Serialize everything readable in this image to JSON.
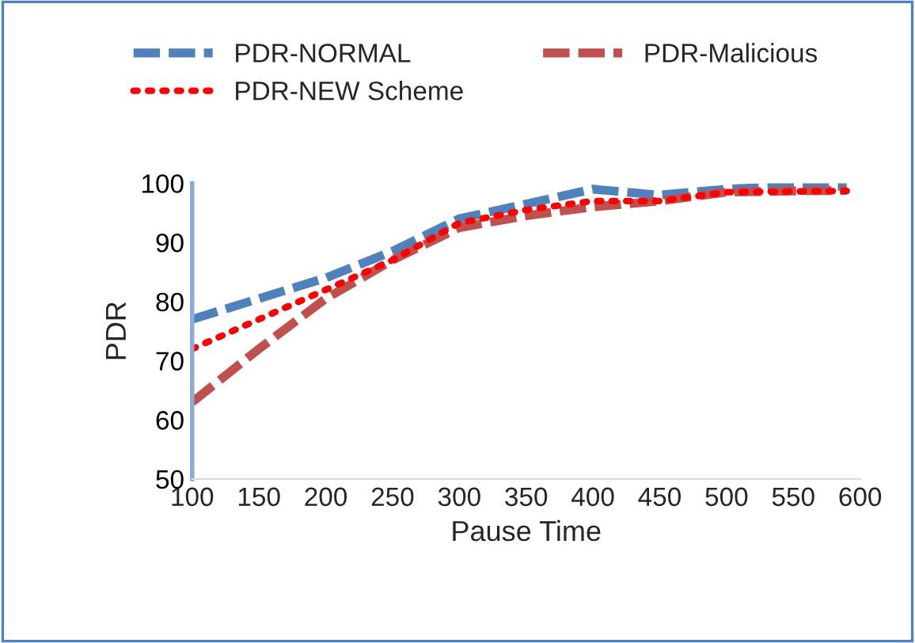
{
  "chart_data": {
    "type": "line",
    "xlabel": "Pause Time",
    "ylabel": "PDR",
    "x": [
      100,
      150,
      200,
      250,
      300,
      350,
      400,
      450,
      500,
      550,
      590
    ],
    "series": [
      {
        "name": "PDR-NORMAL",
        "color": "#4f81bd",
        "line_style": "dashed",
        "values": [
          77,
          80.5,
          84,
          88.5,
          94,
          96.5,
          99,
          98,
          99,
          99.5,
          99.5
        ]
      },
      {
        "name": "PDR-Malicious",
        "color": "#c0504d",
        "line_style": "dashed",
        "values": [
          63,
          72,
          80.5,
          87,
          92.5,
          94.5,
          96,
          97,
          98.5,
          98.7,
          98.8
        ]
      },
      {
        "name": "PDR-NEW Scheme",
        "color": "#ff0000",
        "line_style": "dotted",
        "values": [
          72,
          77,
          82,
          87,
          93.3,
          95.5,
          97,
          97,
          98.5,
          98.6,
          98.7
        ]
      }
    ],
    "xlim": [
      100,
      600
    ],
    "xticks": [
      100,
      150,
      200,
      250,
      300,
      350,
      400,
      450,
      500,
      550,
      600
    ],
    "ylim": [
      50,
      100
    ],
    "yticks": [
      50,
      60,
      70,
      80,
      90,
      100
    ],
    "grid": false,
    "legend": "top",
    "marker": "none"
  }
}
